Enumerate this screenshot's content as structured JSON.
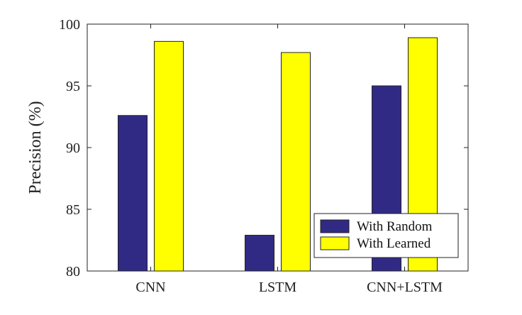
{
  "chart_data": {
    "type": "bar",
    "ylabel": "Precision (%)",
    "ylim": [
      80,
      100
    ],
    "yticks": [
      80,
      85,
      90,
      95,
      100
    ],
    "categories": [
      "CNN",
      "LSTM",
      "CNN+LSTM"
    ],
    "series": [
      {
        "name": "With Random",
        "color": "#312a85",
        "values": [
          92.6,
          82.9,
          95.0
        ]
      },
      {
        "name": "With Learned",
        "color": "#ffff00",
        "values": [
          98.6,
          97.7,
          98.9
        ]
      }
    ],
    "legend": {
      "position": "bottom-right",
      "box": true
    },
    "grid": false
  }
}
